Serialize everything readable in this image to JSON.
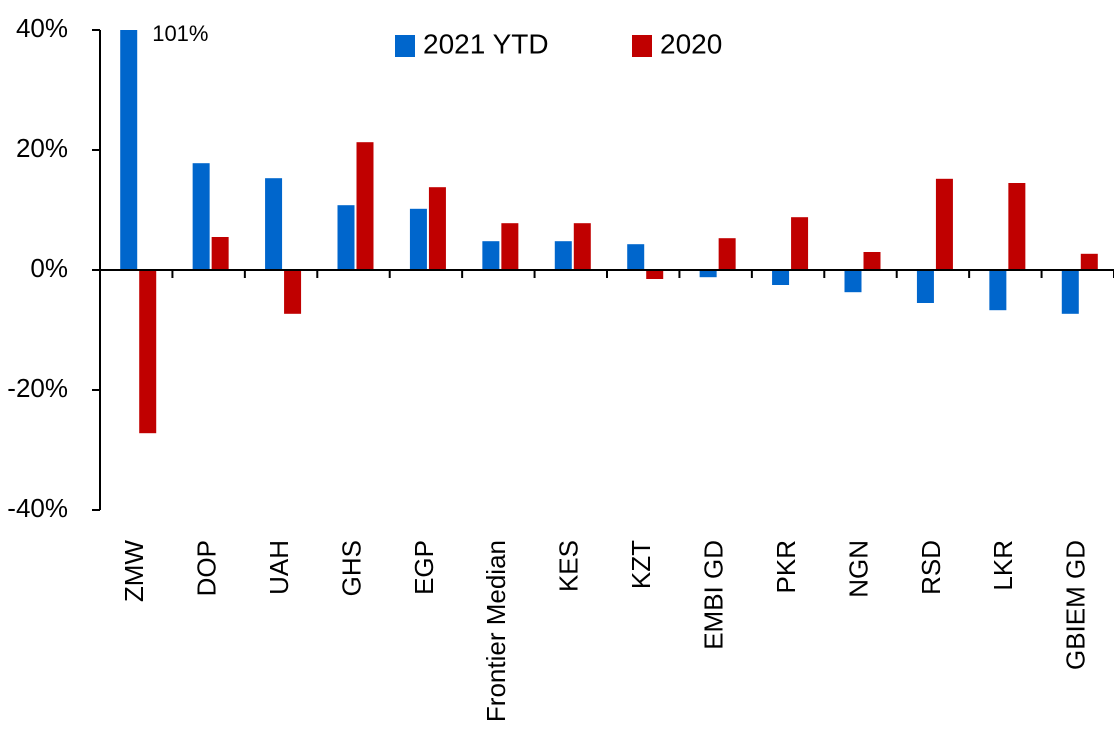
{
  "chart_data": {
    "type": "bar",
    "categories": [
      "ZMW",
      "DOP",
      "UAH",
      "GHS",
      "EGP",
      "Frontier Median",
      "KES",
      "KZT",
      "EMBI GD",
      "PKR",
      "NGN",
      "RSD",
      "LKR",
      "GBIEM GD"
    ],
    "series": [
      {
        "name": "2021 YTD",
        "color": "#0066cc",
        "values": [
          101,
          17.8,
          15.3,
          10.8,
          10.2,
          4.8,
          4.8,
          4.3,
          -1.2,
          -2.5,
          -3.7,
          -5.5,
          -6.7,
          -7.3
        ],
        "value_labels": [
          "101%",
          null,
          null,
          null,
          null,
          null,
          null,
          null,
          null,
          null,
          null,
          null,
          null,
          null
        ]
      },
      {
        "name": "2020",
        "color": "#c00000",
        "values": [
          -27.2,
          5.5,
          -7.3,
          21.3,
          13.8,
          7.8,
          7.8,
          -1.5,
          5.3,
          8.8,
          3.0,
          15.2,
          14.5,
          2.7
        ]
      }
    ],
    "ylim": [
      -40,
      40
    ],
    "yticks": [
      {
        "value": -40,
        "label": "-40%"
      },
      {
        "value": -20,
        "label": "-20%"
      },
      {
        "value": 0,
        "label": "0%"
      },
      {
        "value": 20,
        "label": "20%"
      },
      {
        "value": 40,
        "label": "40%"
      }
    ],
    "grid": false,
    "legend": "top"
  }
}
